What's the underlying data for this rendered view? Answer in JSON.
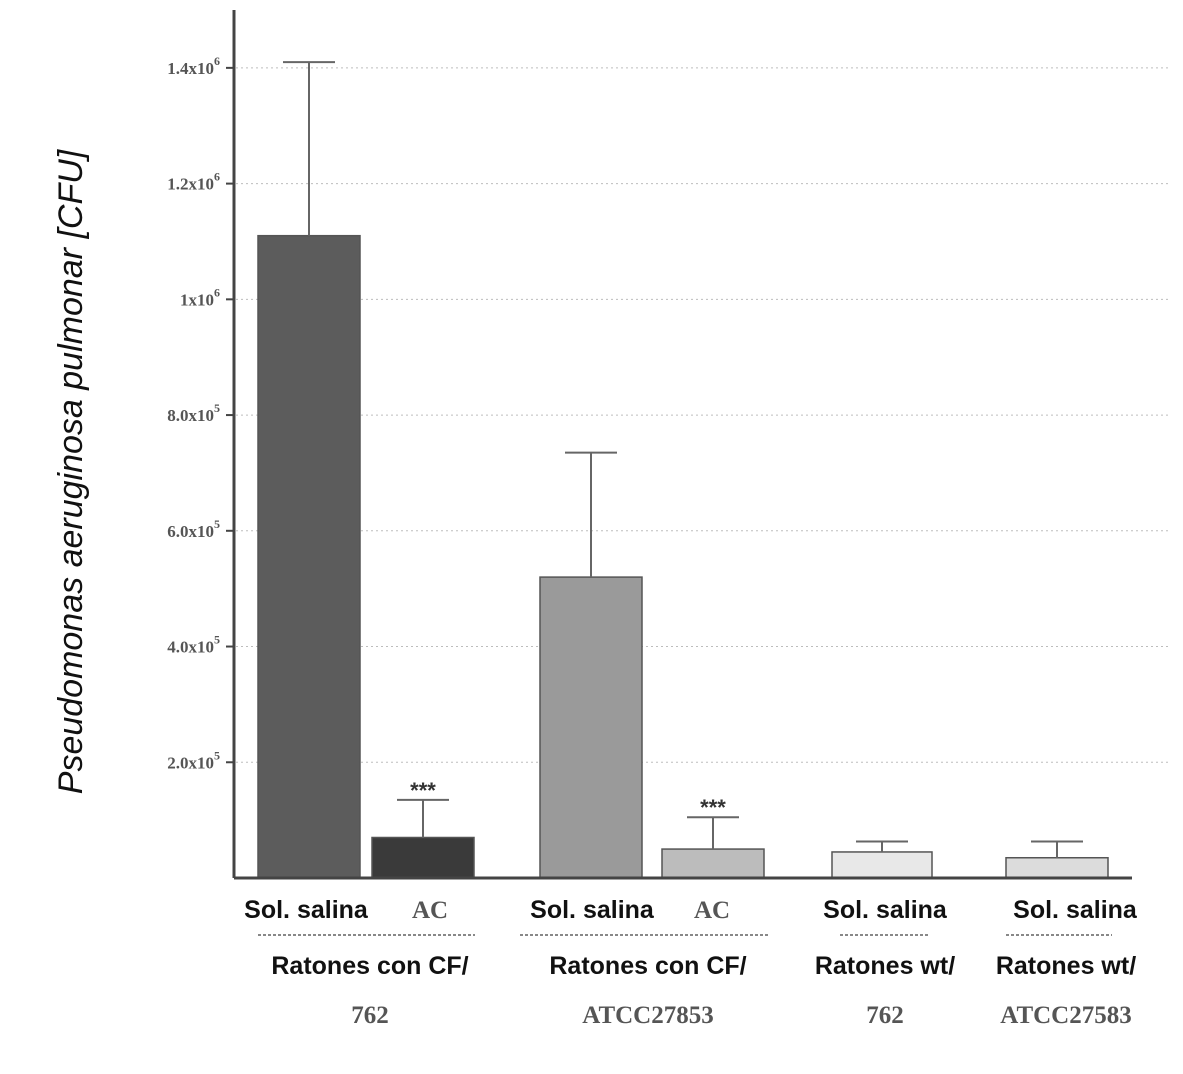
{
  "chart_data": {
    "type": "bar",
    "ylabel": "Pseudomonas aeruginosa pulmonar [CFU]",
    "ylim": [
      0,
      1500000
    ],
    "yticks": [
      {
        "value": 200000,
        "base": "2.0x10",
        "exp": "5"
      },
      {
        "value": 400000,
        "base": "4.0x10",
        "exp": "5"
      },
      {
        "value": 600000,
        "base": "6.0x10",
        "exp": "5"
      },
      {
        "value": 800000,
        "base": "8.0x10",
        "exp": "5"
      },
      {
        "value": 1000000,
        "base": "1x10",
        "exp": "6"
      },
      {
        "value": 1200000,
        "base": "1.2x10",
        "exp": "6"
      },
      {
        "value": 1400000,
        "base": "1.4x10",
        "exp": "6"
      }
    ],
    "grid": true,
    "categories": [
      "Sol. salina",
      "AC",
      "Sol. salina",
      "AC",
      "Sol. salina",
      "Sol. salina"
    ],
    "values": [
      1110000,
      70000,
      520000,
      50000,
      45000,
      35000
    ],
    "errors": [
      300000,
      65000,
      215000,
      55000,
      18000,
      28000
    ],
    "significance": [
      "",
      "***",
      "",
      "***",
      "",
      ""
    ],
    "colors": [
      "#5c5c5c",
      "#3a3a3a",
      "#9a9a9a",
      "#bcbcbc",
      "#e8e8e8",
      "#dcdcdc"
    ],
    "groups": [
      {
        "line1": "Ratones con CF/",
        "line2": "762"
      },
      {
        "line1": "Ratones con CF/",
        "line2": "ATCC27853"
      },
      {
        "line1": "Ratones wt/",
        "line2": "762"
      },
      {
        "line1": "Ratones wt/",
        "line2": "ATCC27583"
      }
    ]
  }
}
